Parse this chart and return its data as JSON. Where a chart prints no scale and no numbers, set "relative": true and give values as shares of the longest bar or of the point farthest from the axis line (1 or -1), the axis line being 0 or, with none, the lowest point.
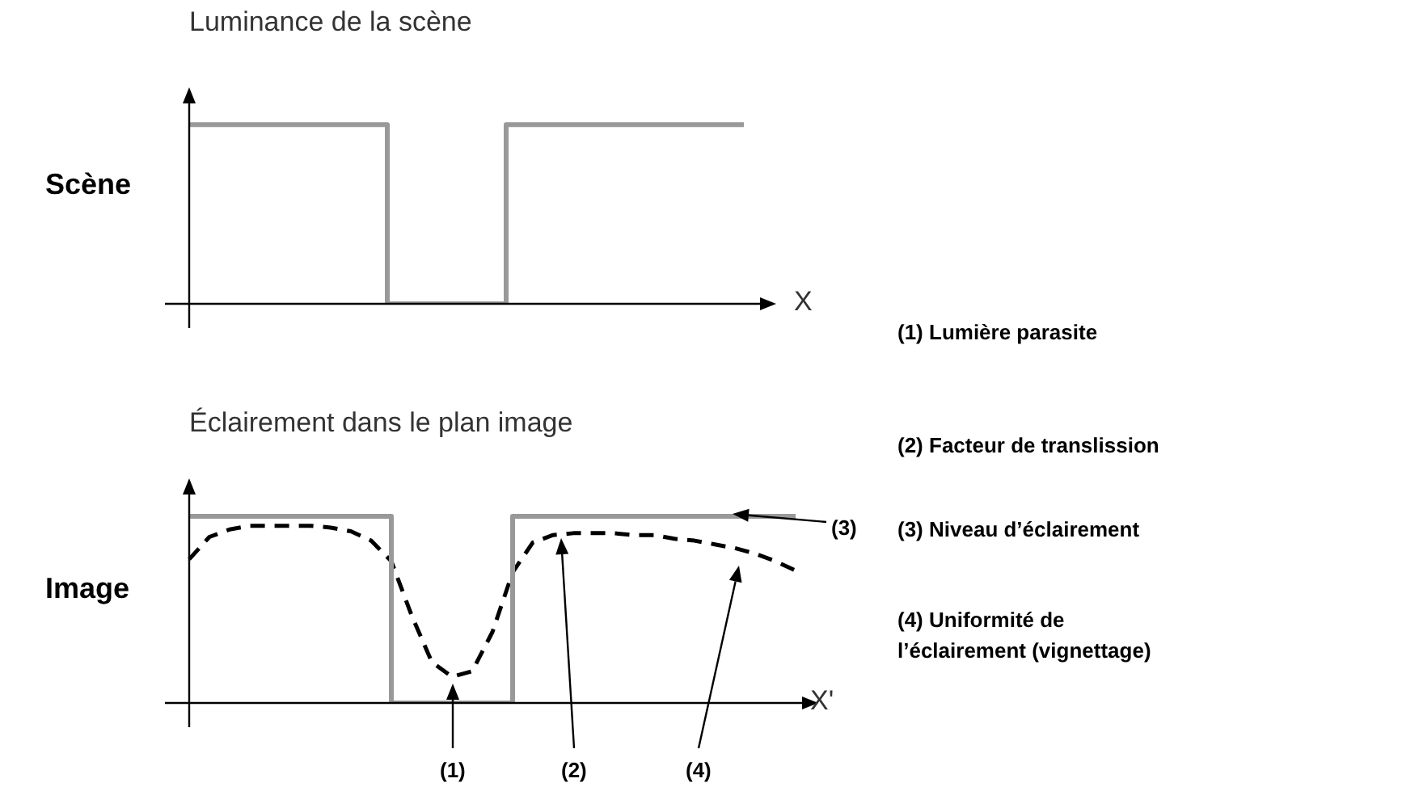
{
  "chart_data": [
    {
      "type": "line",
      "title": "Luminance de la scène",
      "ylabel": "Scène",
      "xlabel": "X",
      "relative": true,
      "categories": [
        null,
        null,
        null,
        null,
        null,
        null,
        null,
        null,
        null,
        null,
        null,
        null,
        null,
        null,
        null
      ],
      "series": [
        {
          "type": "step",
          "color": "#999999",
          "values": [
            1,
            1,
            1,
            1,
            1,
            0,
            0,
            0,
            1,
            1,
            1,
            1,
            1,
            1,
            1
          ]
        }
      ]
    },
    {
      "type": "line",
      "title": "Éclairement dans le plan image",
      "ylabel": "Image",
      "xlabel": "X'",
      "relative": true,
      "categories": [
        null,
        null,
        null,
        null,
        null,
        null,
        null,
        null,
        null,
        null,
        null,
        null,
        null,
        null,
        null,
        null,
        null,
        null,
        null,
        null,
        null,
        null,
        null,
        null,
        null,
        null,
        null,
        null,
        null,
        null,
        null
      ],
      "series": [
        {
          "type": "step",
          "color": "#999999",
          "values": [
            1,
            1,
            1,
            1,
            1,
            1,
            1,
            1,
            1,
            1,
            0,
            0,
            0,
            0,
            0,
            0,
            1,
            1,
            1,
            1,
            1,
            1,
            1,
            1,
            1,
            1,
            1,
            1,
            1,
            1,
            1
          ]
        },
        {
          "type": "line",
          "color": "#000000",
          "line_style": "dashed",
          "values": [
            0.77,
            0.89,
            0.93,
            0.95,
            0.95,
            0.95,
            0.95,
            0.94,
            0.92,
            0.87,
            0.76,
            0.47,
            0.22,
            0.14,
            0.17,
            0.38,
            0.7,
            0.86,
            0.9,
            0.91,
            0.91,
            0.91,
            0.9,
            0.9,
            0.88,
            0.87,
            0.85,
            0.83,
            0.8,
            0.76,
            0.71
          ]
        }
      ],
      "annotations": [
        "(1)",
        "(2)",
        "(3)",
        "(4)",
        "(1) Lumière parasite",
        "(2) Facteur de translission",
        "(3) Niveau d’éclairement",
        "(4) Uniformité de l’éclairement (vignettage)"
      ]
    }
  ]
}
